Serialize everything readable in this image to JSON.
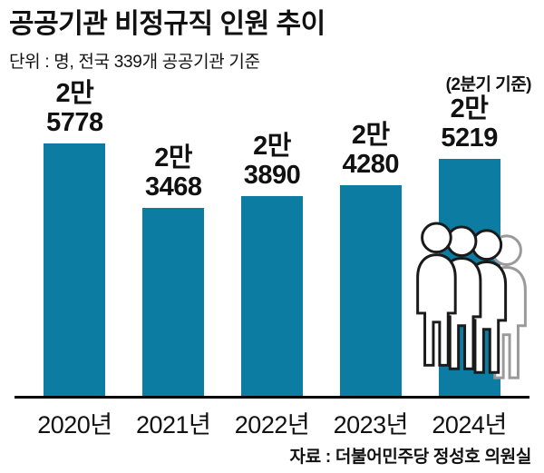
{
  "title": "공공기관 비정규직 인원 추이",
  "subtitle": "단위 : 명, 전국 339개 공공기관 기준",
  "note": "(2분기 기준)",
  "source": "자료 : 더불어민주당 정성호 의원실",
  "chart_data": {
    "type": "bar",
    "title": "공공기관 비정규직 인원 추이",
    "unit": "명",
    "categories": [
      "2020년",
      "2021년",
      "2022년",
      "2023년",
      "2024년"
    ],
    "values": [
      25778,
      23468,
      23890,
      24280,
      25219
    ],
    "value_labels": [
      [
        "2만",
        "5778"
      ],
      [
        "2만",
        "3468"
      ],
      [
        "2만",
        "3890"
      ],
      [
        "2만",
        "4280"
      ],
      [
        "2만",
        "5219"
      ]
    ],
    "annotation": "(2분기 기준)",
    "xlabel": "",
    "ylabel": "명",
    "ylim": [
      16800,
      26000
    ],
    "grid": false,
    "legend": "none",
    "bar_color": "#0d7ca3"
  }
}
